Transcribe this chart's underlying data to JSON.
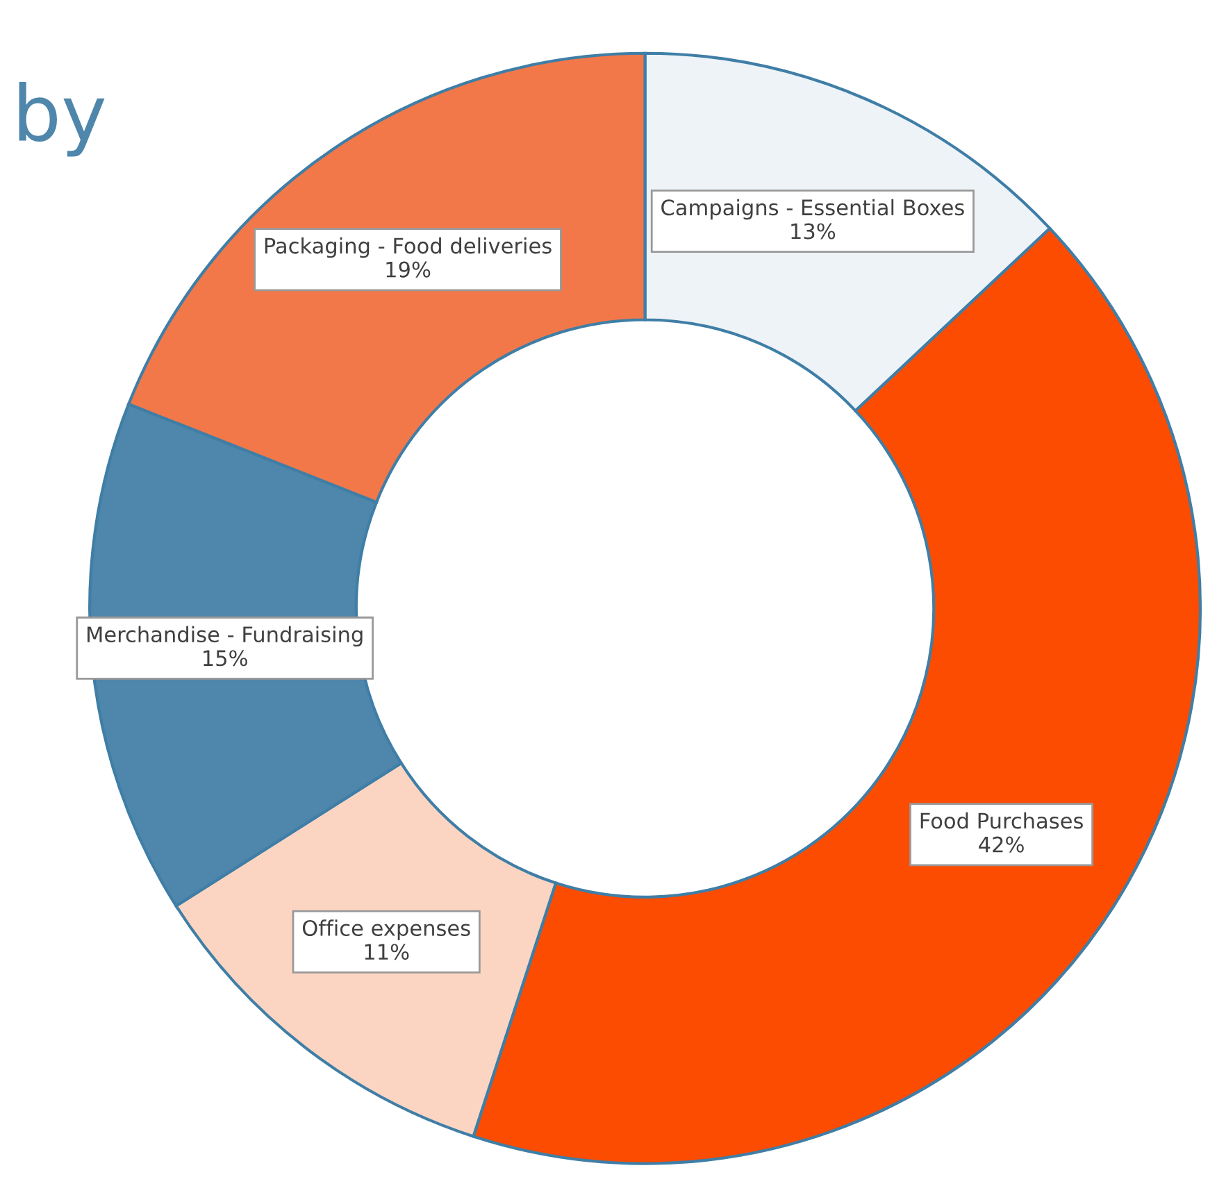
{
  "chart_data": {
    "type": "donut",
    "title": "by",
    "categories": [
      "Campaigns - Essential Boxes",
      "Food Purchases",
      "Office expenses",
      "Merchandise - Fundraising",
      "Packaging - Food deliveries"
    ],
    "values": [
      13,
      42,
      11,
      15,
      19
    ],
    "value_labels": [
      "13%",
      "42%",
      "11%",
      "15%",
      "19%"
    ],
    "colors": [
      "#eef3f8",
      "#fc4c02",
      "#fcd5c2",
      "#4f86ab",
      "#f2784a"
    ],
    "legend": false
  }
}
